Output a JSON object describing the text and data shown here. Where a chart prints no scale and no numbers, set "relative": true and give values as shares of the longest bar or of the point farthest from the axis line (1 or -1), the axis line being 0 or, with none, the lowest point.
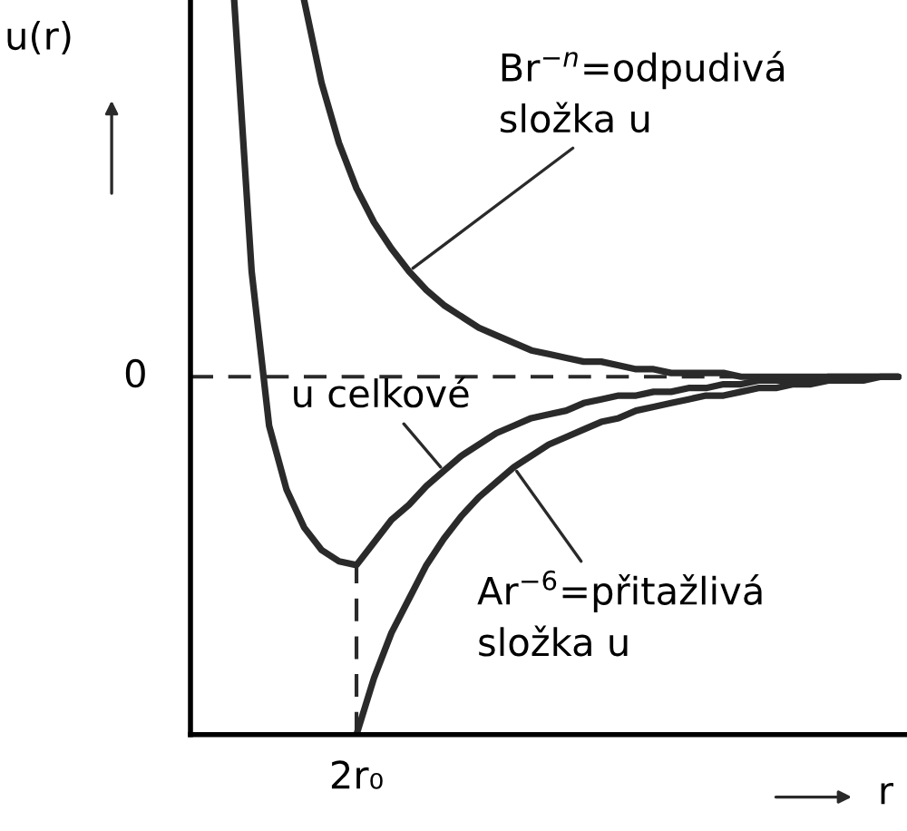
{
  "chart_data": {
    "type": "line",
    "relative": true,
    "ylabel": "u(r)",
    "xlabel": "r",
    "categories": [
      null,
      null,
      null,
      null,
      null,
      null,
      null,
      null,
      null,
      null,
      null,
      null,
      null,
      null,
      null,
      null,
      null,
      null,
      null,
      null,
      null,
      null,
      null,
      null,
      null,
      null,
      null,
      null,
      null,
      null,
      null,
      null,
      null,
      null,
      null,
      null,
      null,
      null,
      null,
      null,
      null
    ],
    "series": [
      {
        "color": "#2a2a2a",
        "values": [
          null,
          null,
          1.0,
          0.28,
          -0.13,
          -0.3,
          -0.4,
          -0.46,
          -0.49,
          -0.5,
          -0.44,
          -0.38,
          -0.34,
          -0.29,
          -0.25,
          -0.21,
          -0.18,
          -0.15,
          -0.13,
          -0.11,
          -0.1,
          -0.09,
          -0.07,
          -0.06,
          -0.05,
          -0.05,
          -0.04,
          -0.04,
          -0.03,
          -0.03,
          -0.02,
          -0.02,
          -0.01,
          -0.01,
          -0.01,
          -0.01,
          0,
          0,
          0,
          0,
          0
        ]
      },
      {
        "color": "#2a2a2a",
        "values": [
          null,
          null,
          null,
          null,
          null,
          null,
          1.0,
          0.78,
          0.62,
          0.5,
          0.41,
          0.34,
          0.28,
          0.23,
          0.19,
          0.16,
          0.13,
          0.11,
          0.09,
          0.07,
          0.06,
          0.05,
          0.04,
          0.04,
          0.03,
          0.02,
          0.02,
          0.01,
          0.01,
          0.01,
          0.01,
          0,
          0,
          0,
          0,
          0,
          0,
          0,
          0,
          0,
          0
        ]
      },
      {
        "color": "#2a2a2a",
        "values": [
          null,
          null,
          null,
          null,
          null,
          null,
          null,
          null,
          null,
          -0.95,
          -0.8,
          -0.68,
          -0.59,
          -0.5,
          -0.43,
          -0.37,
          -0.32,
          -0.28,
          -0.24,
          -0.21,
          -0.18,
          -0.16,
          -0.14,
          -0.12,
          -0.11,
          -0.09,
          -0.08,
          -0.07,
          -0.06,
          -0.05,
          -0.05,
          -0.04,
          -0.03,
          -0.03,
          -0.02,
          -0.02,
          -0.01,
          -0.01,
          -0.01,
          0,
          0
        ]
      }
    ],
    "ref_lines": [
      {
        "axis": "y",
        "value": 0,
        "label": "0",
        "line_style": "dashed",
        "color": "#2a2a2a"
      }
    ],
    "annotations": [
      "Br$^{−n}$=odpudivá\nsložka u",
      "u celkové",
      "Ar$^{−6}$=přitažlivá\nsložka u",
      "2r₀"
    ],
    "legend": false
  }
}
